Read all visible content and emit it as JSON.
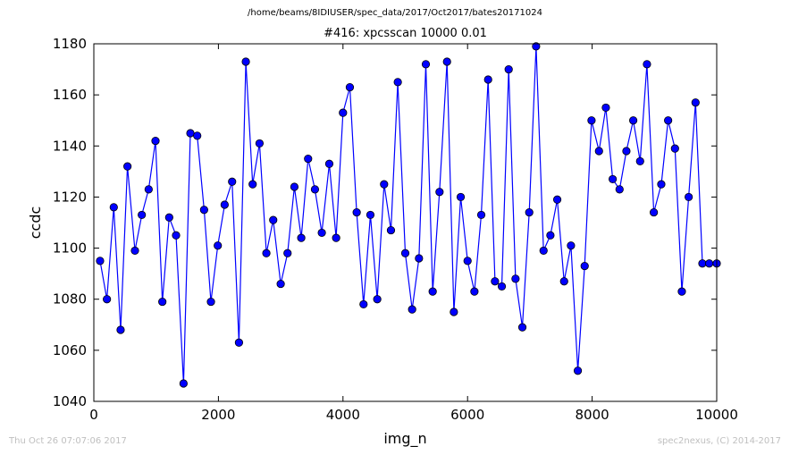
{
  "header": {
    "path": "/home/beams/8IDIUSER/spec_data/2017/Oct2017/bates20171024"
  },
  "footer": {
    "timestamp": "Thu Oct 26 07:07:06 2017",
    "credit": "spec2nexus, (C) 2014-2017"
  },
  "chart_data": {
    "type": "line",
    "title": "#416: xpcsscan 10000 0.01",
    "xlabel": "img_n",
    "ylabel": "ccdc",
    "xlim": [
      0,
      10000
    ],
    "ylim": [
      1040,
      1180
    ],
    "xticks": [
      0,
      2000,
      4000,
      6000,
      8000,
      10000
    ],
    "yticks": [
      1040,
      1060,
      1080,
      1100,
      1120,
      1140,
      1160,
      1180
    ],
    "grid": false,
    "line_color": "#0000ff",
    "marker": "circle",
    "series": [
      {
        "x": [
          100,
          210,
          320,
          430,
          540,
          660,
          770,
          880,
          990,
          1100,
          1210,
          1320,
          1440,
          1550,
          1660,
          1770,
          1880,
          1990,
          2100,
          2220,
          2330,
          2440,
          2550,
          2660,
          2770,
          2880,
          3000,
          3110,
          3220,
          3330,
          3440,
          3550,
          3660,
          3780,
          3890,
          4000,
          4110,
          4220,
          4330,
          4440,
          4550,
          4660,
          4770,
          4880,
          5000,
          5110,
          5220,
          5330,
          5440,
          5550,
          5670,
          5780,
          5890,
          6000,
          6110,
          6220,
          6330,
          6440,
          6550,
          6660,
          6770,
          6880,
          6990,
          7100,
          7220,
          7330,
          7440,
          7550,
          7660,
          7770,
          7880,
          7990,
          8110,
          8220,
          8330,
          8440,
          8550,
          8660,
          8770,
          8880,
          8990,
          9110,
          9220,
          9330,
          9440,
          9550,
          9660,
          9770,
          9880,
          10000
        ],
        "y": [
          1095,
          1080,
          1116,
          1068,
          1132,
          1099,
          1113,
          1123,
          1142,
          1079,
          1112,
          1105,
          1047,
          1145,
          1144,
          1115,
          1079,
          1101,
          1117,
          1126,
          1063,
          1173,
          1125,
          1141,
          1098,
          1111,
          1086,
          1098,
          1124,
          1104,
          1135,
          1123,
          1106,
          1133,
          1104,
          1153,
          1163,
          1114,
          1078,
          1113,
          1080,
          1125,
          1107,
          1165,
          1098,
          1076,
          1096,
          1172,
          1083,
          1122,
          1173,
          1075,
          1120,
          1095,
          1083,
          1113,
          1166,
          1087,
          1085,
          1170,
          1088,
          1069,
          1114,
          1179,
          1099,
          1105,
          1119,
          1087,
          1101,
          1052,
          1093,
          1150,
          1138,
          1155,
          1127,
          1123,
          1138,
          1150,
          1134,
          1172,
          1114,
          1125,
          1150,
          1139,
          1083,
          1120,
          1157,
          1094,
          1094,
          1094
        ]
      }
    ]
  }
}
